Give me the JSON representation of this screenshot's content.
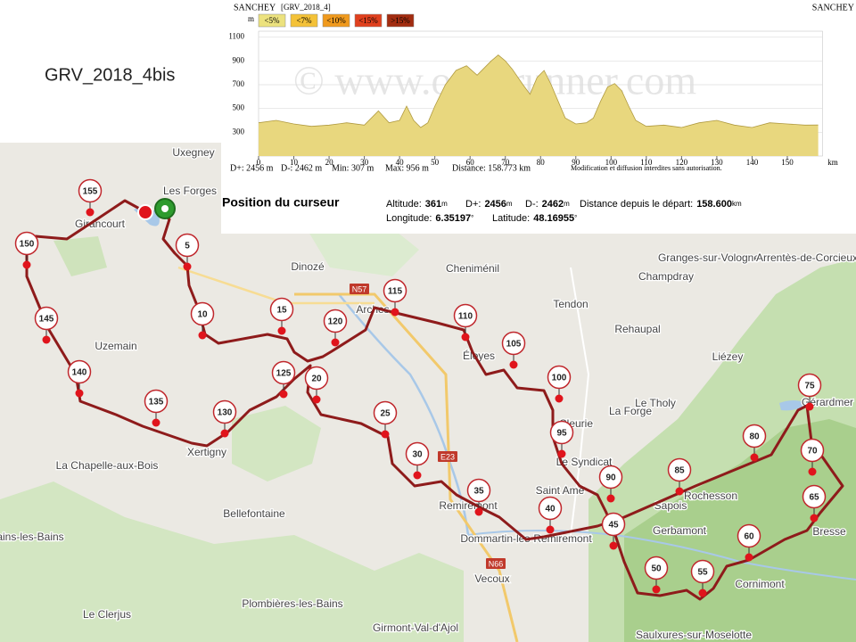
{
  "title": "GRV_2018_4bis",
  "chart_data": {
    "type": "area",
    "header_left": "SANCHEY",
    "header_center": "[GRV_2018_4]",
    "header_right": "SANCHEY",
    "watermark": "© www.openrunner.com",
    "y_unit": "m",
    "x_unit": "km",
    "legend": [
      {
        "name": "<5%",
        "color": "#ece27e"
      },
      {
        "name": "<7%",
        "color": "#f4c238"
      },
      {
        "name": "<10%",
        "color": "#f09a1e"
      },
      {
        "name": "<15%",
        "color": "#e0401e"
      },
      {
        "name": ">15%",
        "color": "#a22c10"
      }
    ],
    "x": [
      0,
      5,
      10,
      15,
      20,
      25,
      30,
      34,
      37,
      40,
      42,
      44,
      46,
      48,
      50,
      53,
      56,
      59,
      62,
      64,
      66,
      68,
      70,
      72,
      75,
      77,
      79,
      81,
      83,
      85,
      87,
      90,
      93,
      95,
      97,
      99,
      101,
      103,
      105,
      107,
      110,
      115,
      120,
      125,
      130,
      135,
      140,
      145,
      150,
      155,
      158.773
    ],
    "values": [
      380,
      400,
      370,
      350,
      360,
      380,
      360,
      480,
      380,
      400,
      520,
      400,
      340,
      380,
      520,
      700,
      820,
      860,
      780,
      840,
      900,
      950,
      900,
      830,
      700,
      620,
      760,
      820,
      700,
      560,
      420,
      370,
      380,
      420,
      560,
      680,
      710,
      650,
      520,
      400,
      350,
      360,
      340,
      380,
      400,
      360,
      340,
      380,
      370,
      360,
      361
    ],
    "color": "#e8d77e",
    "xlim": [
      0,
      160
    ],
    "ylim": [
      100,
      1150
    ],
    "xticks": [
      0,
      10,
      20,
      30,
      40,
      50,
      60,
      70,
      80,
      90,
      100,
      110,
      120,
      130,
      140,
      150
    ],
    "yticks": [
      300,
      500,
      700,
      900,
      1100
    ],
    "stats": [
      "D+: 2456 m",
      "D-: 2462 m",
      "Min: 307 m",
      "Max: 956 m",
      "Distance: 158.773 km"
    ],
    "notice": "Modification et diffusion interdites sans autorisation."
  },
  "cursor": {
    "heading": "Position du curseur",
    "items": [
      {
        "label": "Altitude:",
        "value": "361",
        "unit": "m"
      },
      {
        "label": "D+:",
        "value": "2456",
        "unit": "m"
      },
      {
        "label": "D-:",
        "value": "2462",
        "unit": "m"
      },
      {
        "label": "Distance depuis le départ:",
        "value": "158.600",
        "unit": "km"
      },
      {
        "label": "Longitude:",
        "value": "6.35197",
        "unit": "°"
      },
      {
        "label": "Latitude:",
        "value": "48.16955",
        "unit": "°"
      }
    ]
  },
  "map": {
    "places": [
      "Uxegney",
      "Les Forges",
      "Girancourt",
      "Dinozé",
      "Cheniménil",
      "Tendon",
      "Rehaupal",
      "Granges-sur-Vologne",
      "Arrentès-de-Corcieux",
      "Champdray",
      "Liézey",
      "Le Tholy",
      "La Forge",
      "Gérardmer",
      "Uzemain",
      "La Chapelle-aux-Bois",
      "Bellefontaine",
      "Bains-les-Bains",
      "Plombières-les-Bains",
      "Le Clerjus",
      "Girmont-Val-d'Ajol",
      "Vecoux",
      "Remiremont",
      "Dommartin-lès-Remiremont",
      "Saint Amé",
      "Le Syndicat",
      "Cleurie",
      "Éloyes",
      "Arches",
      "Xertigny",
      "Rochesson",
      "Sapois",
      "Gerbamont",
      "Cornimont",
      "Saulxures-sur-Moselotte",
      "Bresse"
    ],
    "roads": [
      "N57",
      "E23",
      "N66"
    ],
    "km_markers": [
      "5",
      "10",
      "15",
      "20",
      "25",
      "30",
      "35",
      "40",
      "45",
      "50",
      "55",
      "60",
      "65",
      "70",
      "75",
      "80",
      "85",
      "90",
      "95",
      "100",
      "105",
      "110",
      "115",
      "120",
      "125",
      "130",
      "135",
      "140",
      "145",
      "150",
      "155"
    ]
  }
}
